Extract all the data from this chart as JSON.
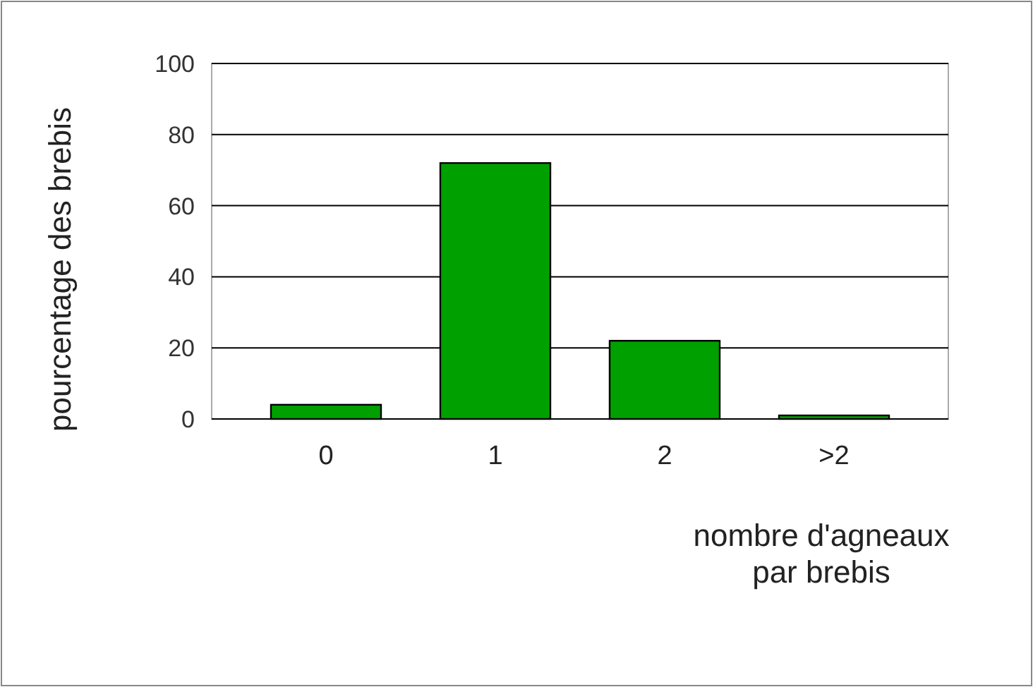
{
  "chart_data": {
    "type": "bar",
    "xlabel": "nombre d'agneaux\npar brebis",
    "ylabel": "pourcentage des brebis",
    "categories": [
      "0",
      "1",
      "2",
      ">2"
    ],
    "values": [
      4,
      72,
      22,
      1
    ],
    "color": "#00a000",
    "ylim": [
      0,
      100
    ],
    "yticks": [
      0,
      20,
      40,
      60,
      80,
      100
    ],
    "grid": "y"
  }
}
